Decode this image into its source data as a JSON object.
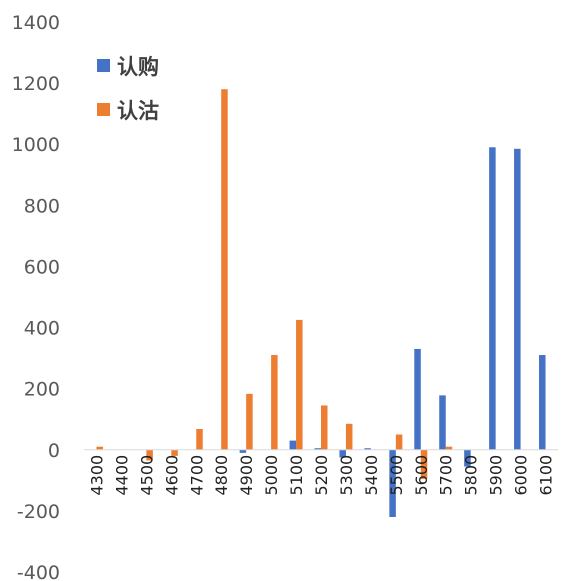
{
  "chart_data": {
    "type": "bar",
    "categories": [
      "4300",
      "4400",
      "4500",
      "4600",
      "4700",
      "4800",
      "4900",
      "5000",
      "5100",
      "5200",
      "5300",
      "5400",
      "5500",
      "5600",
      "5700",
      "5800",
      "5900",
      "6000",
      "6100"
    ],
    "series": [
      {
        "name": "认购",
        "color": "#4472C4",
        "values": [
          0,
          0,
          0,
          0,
          0,
          0,
          -10,
          0,
          30,
          5,
          -25,
          5,
          -220,
          330,
          178,
          -55,
          990,
          985,
          310
        ]
      },
      {
        "name": "认沽",
        "color": "#ED7D31",
        "values": [
          10,
          0,
          -35,
          -20,
          68,
          1180,
          183,
          310,
          425,
          145,
          85,
          0,
          50,
          -95,
          10,
          0,
          0,
          0,
          0
        ]
      }
    ],
    "ylim": [
      -400,
      1400
    ],
    "yticks": [
      "-400",
      "-200",
      "0",
      "200",
      "400",
      "600",
      "800",
      "1000",
      "1200",
      "1400"
    ],
    "legend_position": "top-left",
    "grid": false,
    "title": "",
    "xlabel": "",
    "ylabel": ""
  }
}
